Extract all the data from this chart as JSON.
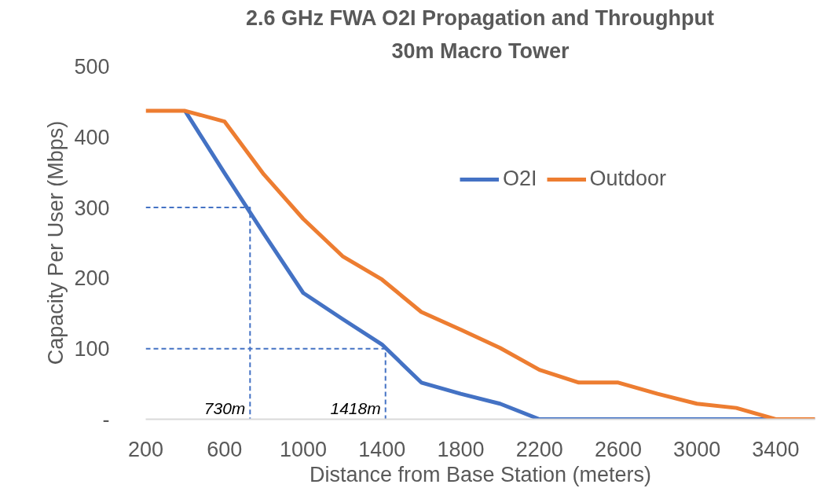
{
  "chart_data": {
    "type": "line",
    "title": "2.6 GHz FWA O2I Propagation and Throughput",
    "subtitle": "30m Macro Tower",
    "xlabel": "Distance from Base Station (meters)",
    "ylabel": "Capacity Per User (Mbps)",
    "x": [
      200,
      400,
      600,
      800,
      1000,
      1200,
      1400,
      1600,
      1800,
      2000,
      2200,
      2400,
      2600,
      2800,
      3000,
      3200,
      3400,
      3600
    ],
    "series": [
      {
        "name": "O2I",
        "color": "#4472c4",
        "values": [
          null,
          437,
          349,
          263,
          179,
          142,
          106,
          52,
          36,
          22,
          0,
          0,
          0,
          0,
          0,
          0,
          0,
          0
        ]
      },
      {
        "name": "Outdoor",
        "color": "#ed7d31",
        "values": [
          437,
          437,
          422,
          347,
          284,
          231,
          198,
          152,
          127,
          101,
          70,
          52,
          52,
          36,
          22,
          16,
          0,
          0
        ]
      },
      {
        "type": "line",
        "color": "#4472c4",
        "line_style": "dashed",
        "x": [
          200,
          730,
          730
        ],
        "values": [
          300,
          300,
          0
        ]
      },
      {
        "type": "line",
        "color": "#4472c4",
        "line_style": "dashed",
        "x": [
          200,
          1418,
          1418
        ],
        "values": [
          100,
          100,
          0
        ]
      }
    ],
    "annotations": [
      {
        "text": "730m",
        "x": 730,
        "y": 0
      },
      {
        "text": "1418m",
        "x": 1418,
        "y": 0
      }
    ],
    "xlim": [
      200,
      3600
    ],
    "xticks": [
      200,
      600,
      1000,
      1400,
      1800,
      2200,
      2600,
      3000,
      3400
    ],
    "ylim": [
      0,
      500
    ],
    "yticks": [
      {
        "value": 0,
        "label": "-"
      },
      100,
      200,
      300,
      400,
      500
    ],
    "grid": false,
    "legend": "top right",
    "line_style": "solid"
  }
}
